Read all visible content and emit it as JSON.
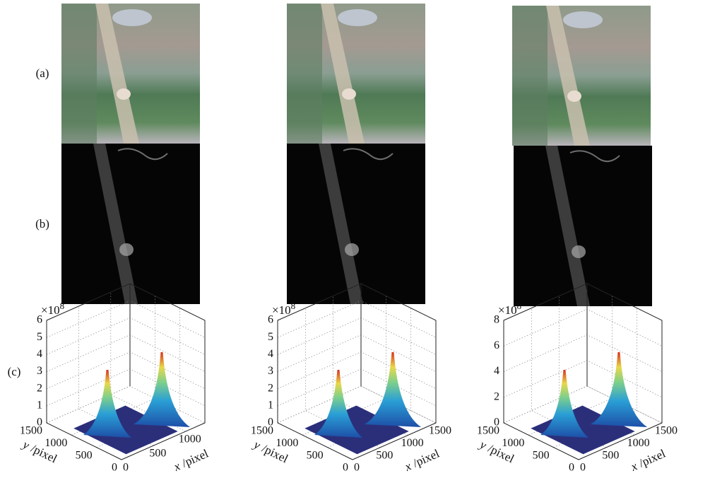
{
  "row_labels": [
    "(a)",
    "(b)",
    "(c)"
  ],
  "plots": [
    {
      "multiplier": "×10",
      "exponent": "8",
      "zlim": [
        0,
        6
      ],
      "zticks": [
        0,
        1,
        2,
        3,
        4,
        5,
        6
      ],
      "ylim": [
        0,
        1500
      ],
      "yticks": [
        1500,
        1000,
        500,
        0
      ],
      "xlim": [
        0,
        1300
      ],
      "xticks": [
        0,
        500,
        1000
      ],
      "ylabel_var": "y",
      "ylabel_unit": "/pixel",
      "xlabel_var": "x",
      "xlabel_unit": "/pixel"
    },
    {
      "multiplier": "×10",
      "exponent": "8",
      "zlim": [
        0,
        6
      ],
      "zticks": [
        0,
        1,
        2,
        3,
        4,
        5,
        6
      ],
      "ylim": [
        0,
        1500
      ],
      "yticks": [
        1500,
        1000,
        500,
        0
      ],
      "xlim": [
        0,
        1500
      ],
      "xticks": [
        0,
        500,
        1000,
        1500
      ],
      "ylabel_var": "y",
      "ylabel_unit": "/pixel",
      "xlabel_var": "x",
      "xlabel_unit": "/pixel"
    },
    {
      "multiplier": "×10",
      "exponent": "8",
      "zlim": [
        0,
        8
      ],
      "zticks": [
        0,
        2,
        4,
        6,
        8
      ],
      "ylim": [
        0,
        1500
      ],
      "yticks": [
        1500,
        1000,
        500,
        0
      ],
      "xlim": [
        0,
        1500
      ],
      "xticks": [
        0,
        500,
        1000,
        1500
      ],
      "ylabel_var": "y",
      "ylabel_unit": "/pixel",
      "xlabel_var": "x",
      "xlabel_unit": "/pixel"
    }
  ]
}
